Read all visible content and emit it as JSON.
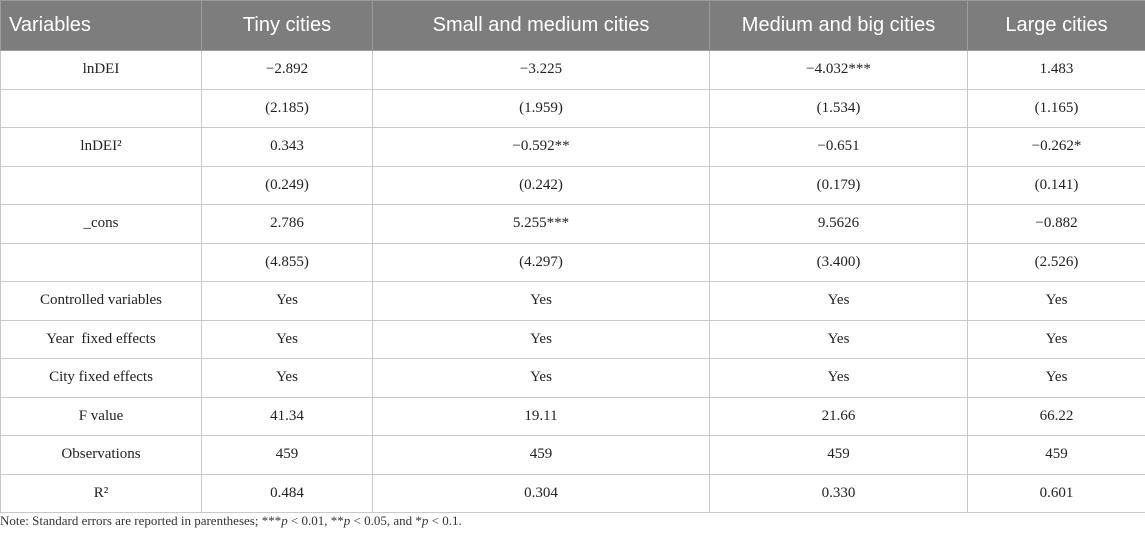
{
  "table": {
    "headers": [
      "Variables",
      "Tiny cities",
      "Small and medium cities",
      "Medium and big cities",
      "Large cities"
    ],
    "rows": [
      [
        "lnDEI",
        "−2.892",
        "−3.225",
        "−4.032***",
        "1.483"
      ],
      [
        "",
        "(2.185)",
        "(1.959)",
        "(1.534)",
        "(1.165)"
      ],
      [
        "lnDEI²",
        "0.343",
        "−0.592**",
        "−0.651",
        "−0.262*"
      ],
      [
        "",
        "(0.249)",
        "(0.242)",
        "(0.179)",
        "(0.141)"
      ],
      [
        "_cons",
        "2.786",
        "5.255***",
        "9.5626",
        "−0.882"
      ],
      [
        "",
        "(4.855)",
        "(4.297)",
        "(3.400)",
        "(2.526)"
      ],
      [
        "Controlled variables",
        "Yes",
        "Yes",
        "Yes",
        "Yes"
      ],
      [
        "Year  fixed effects",
        "Yes",
        "Yes",
        "Yes",
        "Yes"
      ],
      [
        "City fixed effects",
        "Yes",
        "Yes",
        "Yes",
        "Yes"
      ],
      [
        "F value",
        "41.34",
        "19.11",
        "21.66",
        "66.22"
      ],
      [
        "Observations",
        "459",
        "459",
        "459",
        "459"
      ],
      [
        "R²",
        "0.484",
        "0.304",
        "0.330",
        "0.601"
      ]
    ]
  },
  "note": {
    "prefix": "Note: Standard errors are reported in parentheses; ***",
    "p1": "p",
    "mid1": " < 0.01, **",
    "p2": "p",
    "mid2": " < 0.05, and *",
    "p3": "p",
    "suffix": " < 0.1."
  },
  "colors": {
    "header_bg": "#7d7d7d",
    "header_text": "#ffffff",
    "grid": "#c9c9c9"
  }
}
